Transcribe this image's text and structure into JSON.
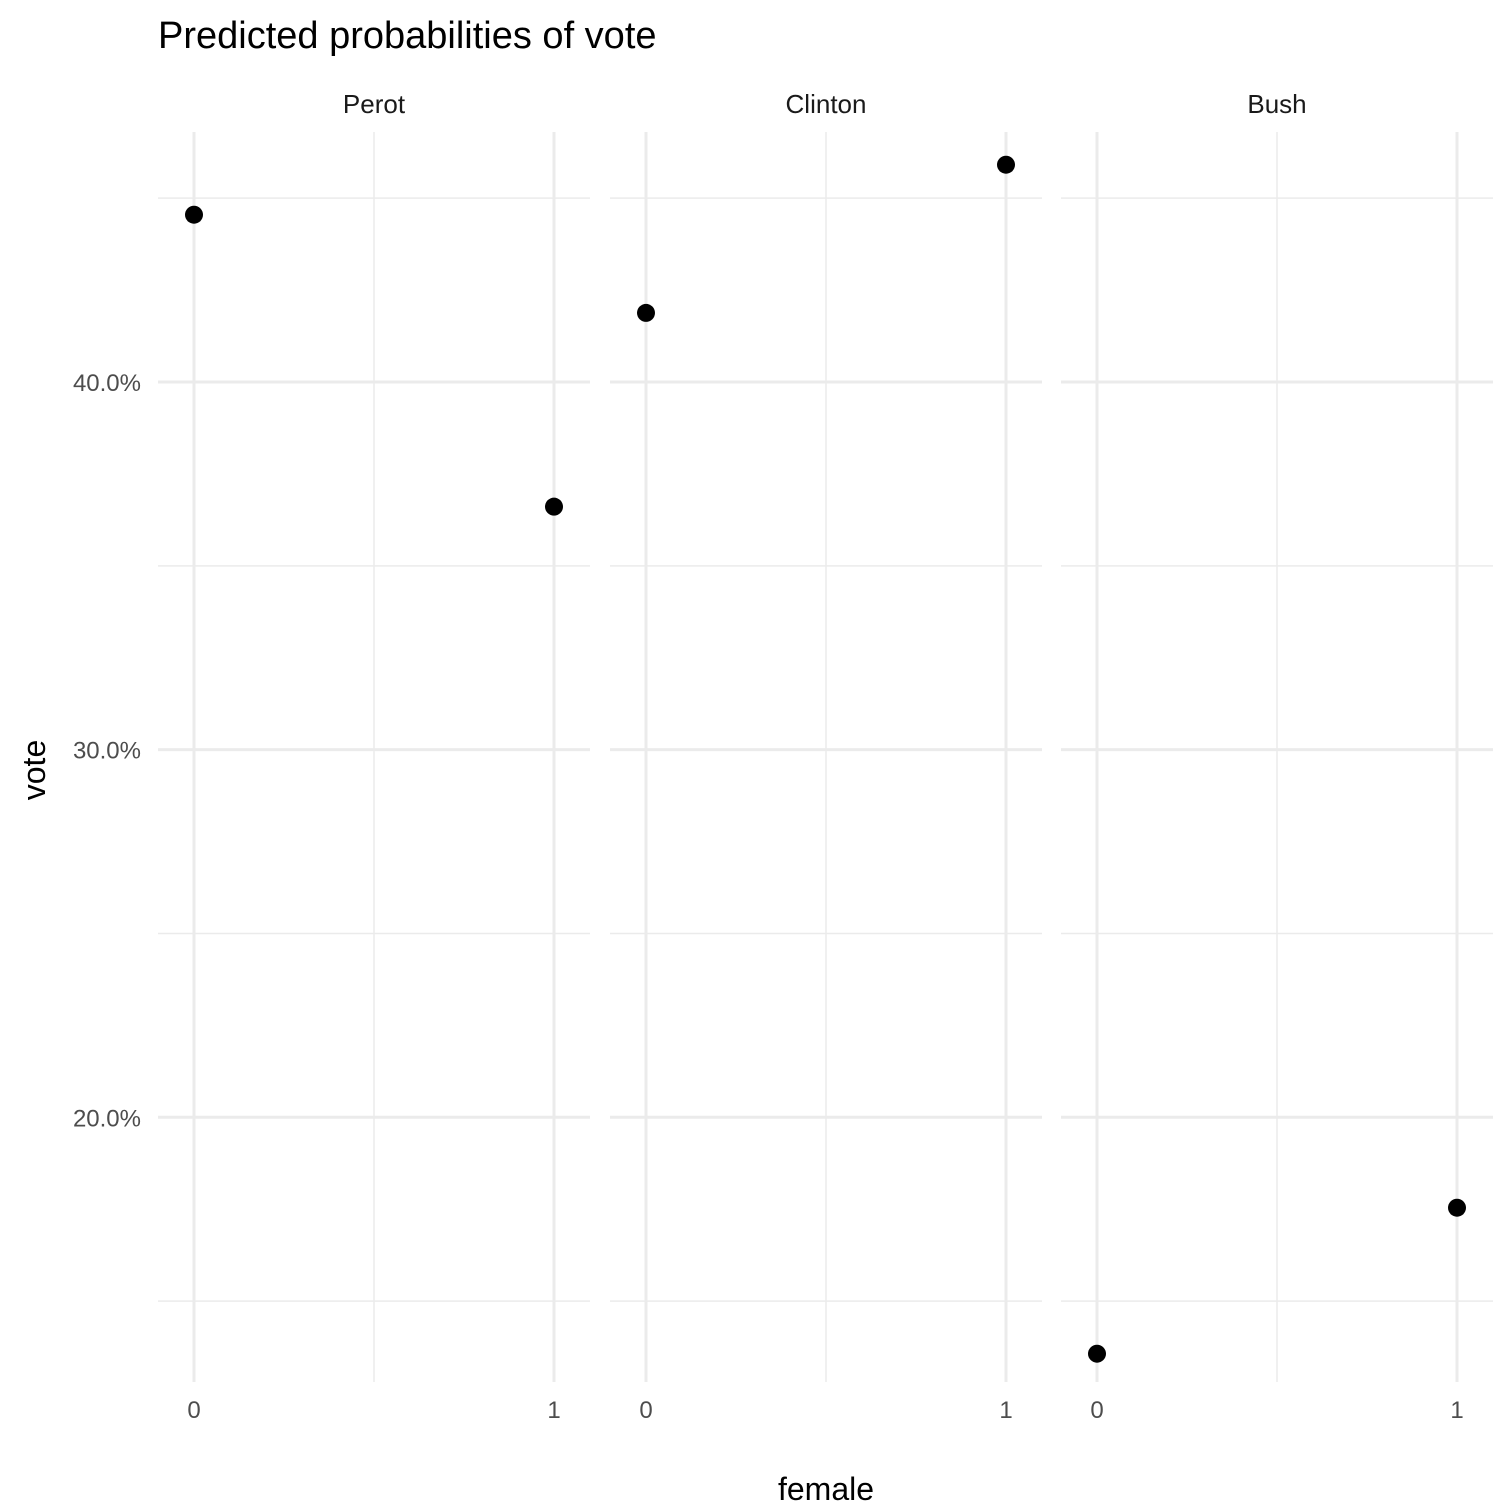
{
  "chart_data": {
    "type": "scatter",
    "title": "Predicted probabilities of vote",
    "xlabel": "female",
    "ylabel": "vote",
    "panels": [
      "Perot",
      "Clinton",
      "Bush"
    ],
    "x_ticks": [
      "0",
      "1"
    ],
    "y_ticks": [
      {
        "value": 0.2,
        "label": "20.0%"
      },
      {
        "value": 0.3,
        "label": "30.0%"
      },
      {
        "value": 0.4,
        "label": "40.0%"
      }
    ],
    "ylim": [
      0.128,
      0.468
    ],
    "xlim": [
      -0.1,
      1.1
    ],
    "series": [
      {
        "panel": "Perot",
        "points": [
          {
            "x": 0,
            "y": 0.4455
          },
          {
            "x": 1,
            "y": 0.3661
          }
        ]
      },
      {
        "panel": "Clinton",
        "points": [
          {
            "x": 0,
            "y": 0.4188
          },
          {
            "x": 1,
            "y": 0.4591
          }
        ]
      },
      {
        "panel": "Bush",
        "points": [
          {
            "x": 0,
            "y": 0.1357
          },
          {
            "x": 1,
            "y": 0.1754
          }
        ]
      }
    ],
    "point_color": "#000000",
    "grid": true,
    "legend": "none"
  }
}
